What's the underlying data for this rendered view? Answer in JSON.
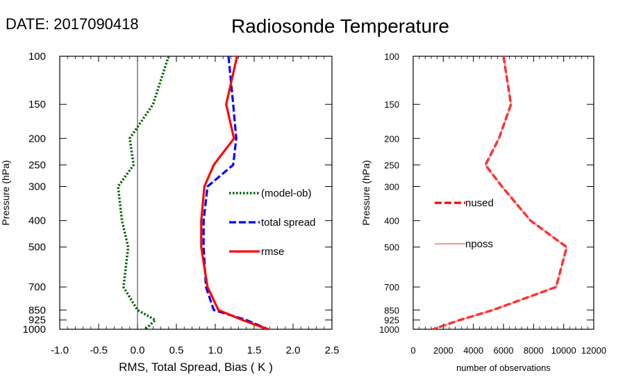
{
  "header": {
    "date_text": "DATE: 2017090418",
    "title": "Radiosonde Temperature"
  },
  "chart_data": [
    {
      "type": "line",
      "xlabel": "RMS, Total Spread, Bias ( K )",
      "ylabel": "Pressure (hPa)",
      "xlim": [
        -1.0,
        2.5
      ],
      "ylim": [
        1000,
        100
      ],
      "yscale": "log",
      "x_ticks": [
        "-1.0",
        "-0.5",
        "0.0",
        "0.5",
        "1.0",
        "1.5",
        "2.0",
        "2.5"
      ],
      "y_ticks": [
        "100",
        "150",
        "200",
        "250",
        "300",
        "400",
        "500",
        "700",
        "850",
        "925",
        "1000"
      ],
      "zero_line": true,
      "grid": false,
      "legend_position": "right-middle",
      "series": [
        {
          "name": "(model-ob)",
          "color": "#006400",
          "style": "dotted",
          "pressure": [
            100,
            150,
            200,
            250,
            300,
            400,
            500,
            700,
            850,
            925,
            1000
          ],
          "values": [
            0.4,
            0.2,
            -0.1,
            -0.05,
            -0.25,
            -0.2,
            -0.12,
            -0.18,
            0.0,
            0.23,
            0.1
          ]
        },
        {
          "name": "total spread",
          "color": "#0000ff",
          "style": "dashed",
          "pressure": [
            100,
            150,
            200,
            250,
            300,
            400,
            500,
            700,
            850,
            925,
            1000
          ],
          "values": [
            1.17,
            1.23,
            1.27,
            1.23,
            0.9,
            0.85,
            0.85,
            0.88,
            0.98,
            1.4,
            1.68
          ]
        },
        {
          "name": "rmse",
          "color": "#ff0000",
          "style": "solid",
          "pressure": [
            100,
            150,
            200,
            250,
            300,
            400,
            500,
            700,
            850,
            925,
            1000
          ],
          "values": [
            1.28,
            1.14,
            1.24,
            0.98,
            0.86,
            0.82,
            0.82,
            0.9,
            1.04,
            1.35,
            1.68
          ]
        }
      ]
    },
    {
      "type": "line",
      "xlabel": "number of observations",
      "ylabel": "Pressure (hPa)",
      "xlim": [
        0,
        12000
      ],
      "ylim": [
        1000,
        100
      ],
      "yscale": "log",
      "x_ticks": [
        "0",
        "2000",
        "4000",
        "6000",
        "8000",
        "10000",
        "12000"
      ],
      "y_ticks": [
        "100",
        "150",
        "200",
        "250",
        "300",
        "400",
        "500",
        "700",
        "850",
        "925",
        "1000"
      ],
      "grid": false,
      "legend_position": "left-middle",
      "series": [
        {
          "name": "nused",
          "color": "#ff0000",
          "style": "dashed",
          "pressure": [
            100,
            150,
            200,
            250,
            300,
            400,
            500,
            700,
            850,
            925,
            1000
          ],
          "values": [
            6000,
            6500,
            5700,
            4800,
            5900,
            7800,
            10200,
            9500,
            5300,
            3100,
            1300
          ]
        },
        {
          "name": "nposs",
          "color": "#ff5555",
          "style": "thin",
          "pressure": [
            100,
            150,
            200,
            250,
            300,
            400,
            500,
            700,
            850,
            925,
            1000
          ],
          "values": [
            6000,
            6500,
            5700,
            4800,
            5900,
            7800,
            10200,
            9500,
            5300,
            3100,
            1300
          ]
        }
      ]
    }
  ]
}
